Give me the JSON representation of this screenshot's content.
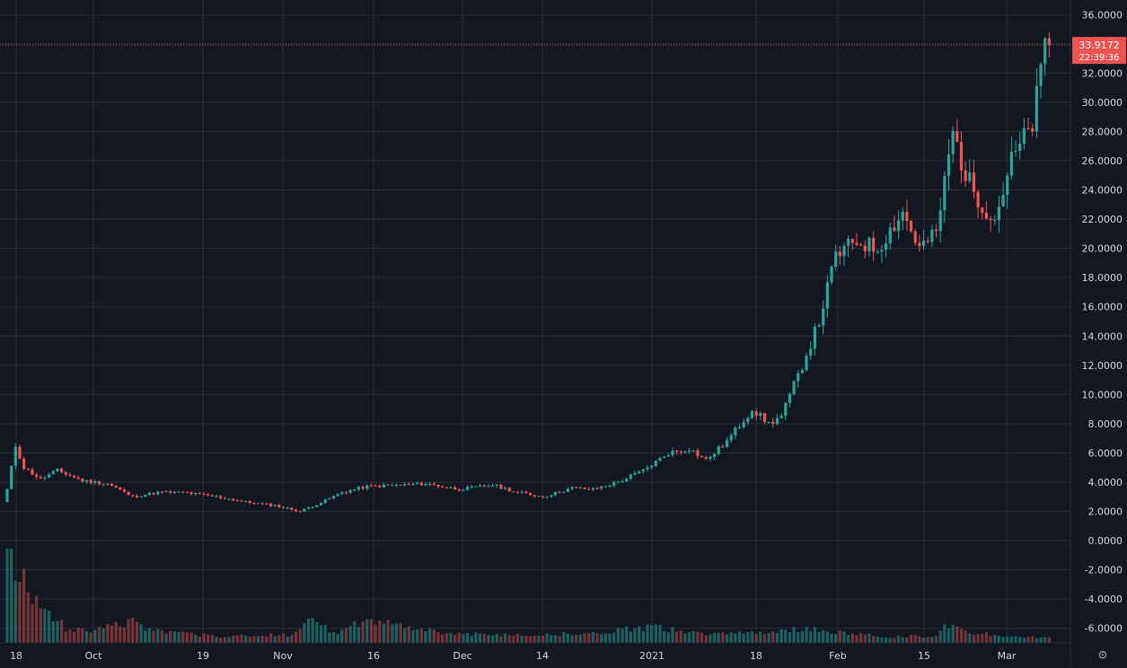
{
  "chart_data": {
    "type": "candlestick",
    "title": "",
    "xlabel": "",
    "ylabel": "",
    "ylim": [
      -7,
      37
    ],
    "y_ticks": [
      "36.0000",
      "34.0000",
      "32.0000",
      "30.0000",
      "28.0000",
      "26.0000",
      "24.0000",
      "22.0000",
      "20.0000",
      "18.0000",
      "16.0000",
      "14.0000",
      "12.0000",
      "10.0000",
      "8.0000",
      "6.0000",
      "4.0000",
      "2.0000",
      "0.0000",
      "-2.0000",
      "-4.0000",
      "-6.0000"
    ],
    "x_ticks": [
      "18",
      "Oct",
      "19",
      "Nov",
      "16",
      "Dec",
      "14",
      "2021",
      "18",
      "Feb",
      "15",
      "Mar"
    ],
    "grid": true,
    "volume_panel": true,
    "current_price": {
      "value": "33.9172",
      "countdown": "22:39:36"
    },
    "colors": {
      "up": "#26a69a",
      "down": "#ef5350",
      "up_volume": "#1f6f6a",
      "down_volume": "#8a3a3c",
      "grid": "#2a2e39",
      "background": "#131722",
      "text": "#d1d4dc"
    },
    "anchors": [
      [
        0,
        3.5
      ],
      [
        2,
        6.5
      ],
      [
        4,
        5.0
      ],
      [
        8,
        4.2
      ],
      [
        12,
        4.8
      ],
      [
        18,
        4.1
      ],
      [
        24,
        3.9
      ],
      [
        30,
        3.0
      ],
      [
        36,
        3.3
      ],
      [
        42,
        3.3
      ],
      [
        50,
        3.0
      ],
      [
        58,
        2.6
      ],
      [
        64,
        2.4
      ],
      [
        70,
        2.0
      ],
      [
        75,
        2.6
      ],
      [
        80,
        3.3
      ],
      [
        86,
        3.7
      ],
      [
        94,
        3.8
      ],
      [
        100,
        3.9
      ],
      [
        108,
        3.5
      ],
      [
        116,
        3.8
      ],
      [
        122,
        3.3
      ],
      [
        128,
        3.0
      ],
      [
        135,
        3.6
      ],
      [
        140,
        3.5
      ],
      [
        146,
        4.0
      ],
      [
        152,
        4.8
      ],
      [
        158,
        6.0
      ],
      [
        163,
        6.3
      ],
      [
        167,
        5.5
      ],
      [
        172,
        6.8
      ],
      [
        178,
        9.0
      ],
      [
        182,
        8.0
      ],
      [
        185,
        8.5
      ],
      [
        190,
        12.0
      ],
      [
        194,
        15.0
      ],
      [
        198,
        19.5
      ],
      [
        203,
        20.5
      ],
      [
        208,
        20.0
      ],
      [
        214,
        22.5
      ],
      [
        218,
        20.0
      ],
      [
        222,
        21.0
      ],
      [
        226,
        28.0
      ],
      [
        229,
        25.0
      ],
      [
        233,
        23.0
      ],
      [
        236,
        22.0
      ],
      [
        240,
        26.0
      ],
      [
        243,
        27.5
      ],
      [
        245,
        28.5
      ],
      [
        248,
        33.9
      ]
    ],
    "volumes": [
      [
        0,
        1.0
      ],
      [
        2,
        0.85
      ],
      [
        6,
        0.55
      ],
      [
        10,
        0.35
      ],
      [
        14,
        0.15
      ],
      [
        20,
        0.14
      ],
      [
        30,
        0.22
      ],
      [
        36,
        0.12
      ],
      [
        50,
        0.07
      ],
      [
        60,
        0.08
      ],
      [
        68,
        0.09
      ],
      [
        72,
        0.28
      ],
      [
        78,
        0.1
      ],
      [
        86,
        0.24
      ],
      [
        96,
        0.17
      ],
      [
        106,
        0.1
      ],
      [
        120,
        0.08
      ],
      [
        140,
        0.1
      ],
      [
        154,
        0.17
      ],
      [
        166,
        0.09
      ],
      [
        176,
        0.1
      ],
      [
        188,
        0.15
      ],
      [
        198,
        0.12
      ],
      [
        210,
        0.06
      ],
      [
        222,
        0.08
      ],
      [
        224,
        0.2
      ],
      [
        230,
        0.1
      ],
      [
        240,
        0.08
      ],
      [
        248,
        0.05
      ]
    ]
  }
}
